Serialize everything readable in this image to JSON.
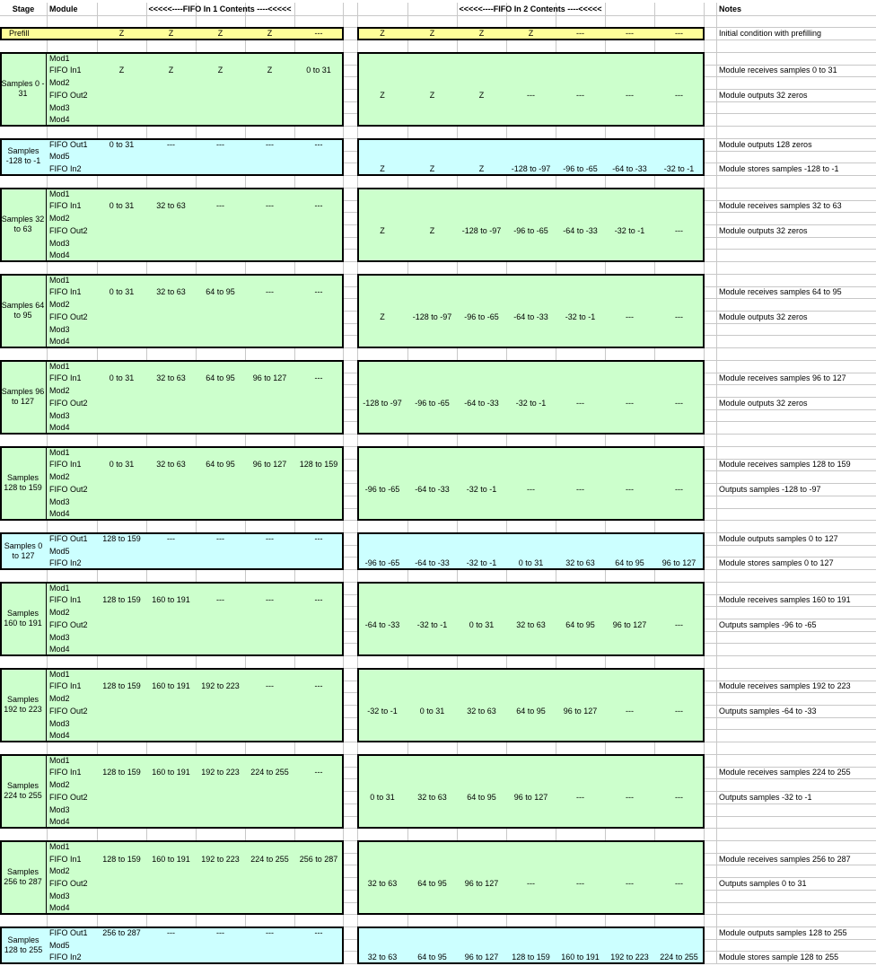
{
  "header": {
    "stage": "Stage",
    "module": "Module",
    "fifo1": "<<<<<----FIFO In 1 Contents ----<<<<<",
    "fifo2": "<<<<<----FIFO In 2 Contents ----<<<<<",
    "notes": "Notes"
  },
  "prefill": {
    "label": "Prefill",
    "fifo1": [
      "Z",
      "Z",
      "Z",
      "Z",
      "---"
    ],
    "fifo2": [
      "Z",
      "Z",
      "Z",
      "Z",
      "---",
      "---",
      "---"
    ],
    "note": "Initial condition with prefilling"
  },
  "colors": {
    "prefill": "#ffff99",
    "green": "#ccffcc",
    "cyan": "#ccffff",
    "grid": "#c8c8c8"
  },
  "blocks": [
    {
      "type": "green",
      "stage": "Samples 0 - 31",
      "rows": [
        {
          "module": "Mod1"
        },
        {
          "module": "FIFO In1",
          "fifo1": [
            "Z",
            "Z",
            "Z",
            "Z",
            "0 to 31"
          ],
          "note": "Module receives samples 0 to 31"
        },
        {
          "module": "Mod2"
        },
        {
          "module": "FIFO Out2",
          "fifo2": [
            "Z",
            "Z",
            "Z",
            "---",
            "---",
            "---",
            "---"
          ],
          "note": "Module outputs 32 zeros"
        },
        {
          "module": "Mod3"
        },
        {
          "module": "Mod4"
        }
      ]
    },
    {
      "type": "cyan",
      "stage": "Samples -128 to -1",
      "rows": [
        {
          "module": "FIFO Out1",
          "fifo1": [
            "0 to 31",
            "---",
            "---",
            "---",
            "---"
          ],
          "note": "Module outputs 128 zeros"
        },
        {
          "module": "Mod5"
        },
        {
          "module": "FIFO In2",
          "fifo2": [
            "Z",
            "Z",
            "Z",
            "-128 to -97",
            "-96 to -65",
            "-64 to -33",
            "-32 to -1"
          ],
          "note": "Module stores samples -128 to -1"
        }
      ]
    },
    {
      "type": "green",
      "stage": "Samples 32 to 63",
      "rows": [
        {
          "module": "Mod1"
        },
        {
          "module": "FIFO In1",
          "fifo1": [
            "0 to 31",
            "32 to 63",
            "---",
            "---",
            "---"
          ],
          "note": "Module receives samples 32 to 63"
        },
        {
          "module": "Mod2"
        },
        {
          "module": "FIFO Out2",
          "fifo2": [
            "Z",
            "Z",
            "-128 to -97",
            "-96 to -65",
            "-64 to -33",
            "-32 to -1",
            "---"
          ],
          "note": "Module outputs 32 zeros"
        },
        {
          "module": "Mod3"
        },
        {
          "module": "Mod4"
        }
      ]
    },
    {
      "type": "green",
      "stage": "Samples 64 to 95",
      "rows": [
        {
          "module": "Mod1"
        },
        {
          "module": "FIFO In1",
          "fifo1": [
            "0 to 31",
            "32 to 63",
            "64 to 95",
            "---",
            "---"
          ],
          "note": "Module receives samples 64 to 95"
        },
        {
          "module": "Mod2"
        },
        {
          "module": "FIFO Out2",
          "fifo2": [
            "Z",
            "-128 to -97",
            "-96 to -65",
            "-64 to -33",
            "-32 to -1",
            "---",
            "---"
          ],
          "note": "Module outputs 32 zeros"
        },
        {
          "module": "Mod3"
        },
        {
          "module": "Mod4"
        }
      ]
    },
    {
      "type": "green",
      "stage": "Samples 96 to 127",
      "rows": [
        {
          "module": "Mod1"
        },
        {
          "module": "FIFO In1",
          "fifo1": [
            "0 to 31",
            "32 to 63",
            "64 to 95",
            "96 to 127",
            "---"
          ],
          "note": "Module receives samples 96 to 127"
        },
        {
          "module": "Mod2"
        },
        {
          "module": "FIFO Out2",
          "fifo2": [
            "-128 to -97",
            "-96 to -65",
            "-64 to -33",
            "-32 to -1",
            "---",
            "---",
            "---"
          ],
          "note": "Module outputs 32 zeros"
        },
        {
          "module": "Mod3"
        },
        {
          "module": "Mod4"
        }
      ]
    },
    {
      "type": "green",
      "stage": "Samples 128 to 159",
      "rows": [
        {
          "module": "Mod1"
        },
        {
          "module": "FIFO In1",
          "fifo1": [
            "0 to 31",
            "32 to 63",
            "64 to 95",
            "96 to 127",
            "128 to 159"
          ],
          "note": "Module receives samples 128 to 159"
        },
        {
          "module": "Mod2"
        },
        {
          "module": "FIFO Out2",
          "fifo2": [
            "-96 to -65",
            "-64 to -33",
            "-32 to -1",
            "---",
            "---",
            "---",
            "---"
          ],
          "note": "Outputs samples -128 to -97"
        },
        {
          "module": "Mod3"
        },
        {
          "module": "Mod4"
        }
      ]
    },
    {
      "type": "cyan",
      "stage": "Samples 0 to 127",
      "rows": [
        {
          "module": "FIFO Out1",
          "fifo1": [
            "128 to 159",
            "---",
            "---",
            "---",
            "---"
          ],
          "note": "Module outputs samples 0 to 127"
        },
        {
          "module": "Mod5"
        },
        {
          "module": "FIFO In2",
          "fifo2": [
            "-96 to -65",
            "-64 to -33",
            "-32 to -1",
            "0 to 31",
            "32 to 63",
            "64 to 95",
            "96 to 127"
          ],
          "note": "Module stores samples 0 to 127"
        }
      ]
    },
    {
      "type": "green",
      "stage": "Samples 160 to 191",
      "rows": [
        {
          "module": "Mod1"
        },
        {
          "module": "FIFO In1",
          "fifo1": [
            "128 to 159",
            "160 to 191",
            "---",
            "---",
            "---"
          ],
          "note": "Module receives samples 160 to 191"
        },
        {
          "module": "Mod2"
        },
        {
          "module": "FIFO Out2",
          "fifo2": [
            "-64 to -33",
            "-32 to -1",
            "0 to 31",
            "32 to 63",
            "64 to 95",
            "96 to 127",
            "---"
          ],
          "note": "Outputs samples -96 to -65"
        },
        {
          "module": "Mod3"
        },
        {
          "module": "Mod4"
        }
      ]
    },
    {
      "type": "green",
      "stage": "Samples 192 to 223",
      "rows": [
        {
          "module": "Mod1"
        },
        {
          "module": "FIFO In1",
          "fifo1": [
            "128 to 159",
            "160 to 191",
            "192 to 223",
            "---",
            "---"
          ],
          "note": "Module receives samples 192 to 223"
        },
        {
          "module": "Mod2"
        },
        {
          "module": "FIFO Out2",
          "fifo2": [
            "-32 to -1",
            "0 to 31",
            "32 to 63",
            "64 to 95",
            "96 to 127",
            "---",
            "---"
          ],
          "note": "Outputs samples -64 to -33"
        },
        {
          "module": "Mod3"
        },
        {
          "module": "Mod4"
        }
      ]
    },
    {
      "type": "green",
      "stage": "Samples 224 to 255",
      "rows": [
        {
          "module": "Mod1"
        },
        {
          "module": "FIFO In1",
          "fifo1": [
            "128 to 159",
            "160 to 191",
            "192 to 223",
            "224 to 255",
            "---"
          ],
          "note": "Module receives samples 224 to 255"
        },
        {
          "module": "Mod2"
        },
        {
          "module": "FIFO Out2",
          "fifo2": [
            "0 to 31",
            "32 to 63",
            "64 to 95",
            "96 to 127",
            "---",
            "---",
            "---"
          ],
          "note": "Outputs samples -32 to -1"
        },
        {
          "module": "Mod3"
        },
        {
          "module": "Mod4"
        }
      ]
    },
    {
      "type": "green",
      "stage": "Samples 256 to 287",
      "rows": [
        {
          "module": "Mod1"
        },
        {
          "module": "FIFO In1",
          "fifo1": [
            "128 to 159",
            "160 to 191",
            "192 to 223",
            "224 to 255",
            "256 to 287"
          ],
          "note": "Module receives samples 256 to 287"
        },
        {
          "module": "Mod2"
        },
        {
          "module": "FIFO Out2",
          "fifo2": [
            "32 to 63",
            "64 to 95",
            "96 to 127",
            "---",
            "---",
            "---",
            "---"
          ],
          "note": "Outputs samples 0 to 31"
        },
        {
          "module": "Mod3"
        },
        {
          "module": "Mod4"
        }
      ]
    },
    {
      "type": "cyan",
      "stage": "Samples 128 to 255",
      "rows": [
        {
          "module": "FIFO Out1",
          "fifo1": [
            "256 to 287",
            "---",
            "---",
            "---",
            "---"
          ],
          "note": "Module outputs samples 128 to 255"
        },
        {
          "module": "Mod5"
        },
        {
          "module": "FIFO In2",
          "fifo2": [
            "32 to 63",
            "64 to 95",
            "96 to 127",
            "128 to 159",
            "160 to 191",
            "192 to 223",
            "224 to 255"
          ],
          "note": "Module stores sample 128 to 255"
        }
      ]
    }
  ]
}
